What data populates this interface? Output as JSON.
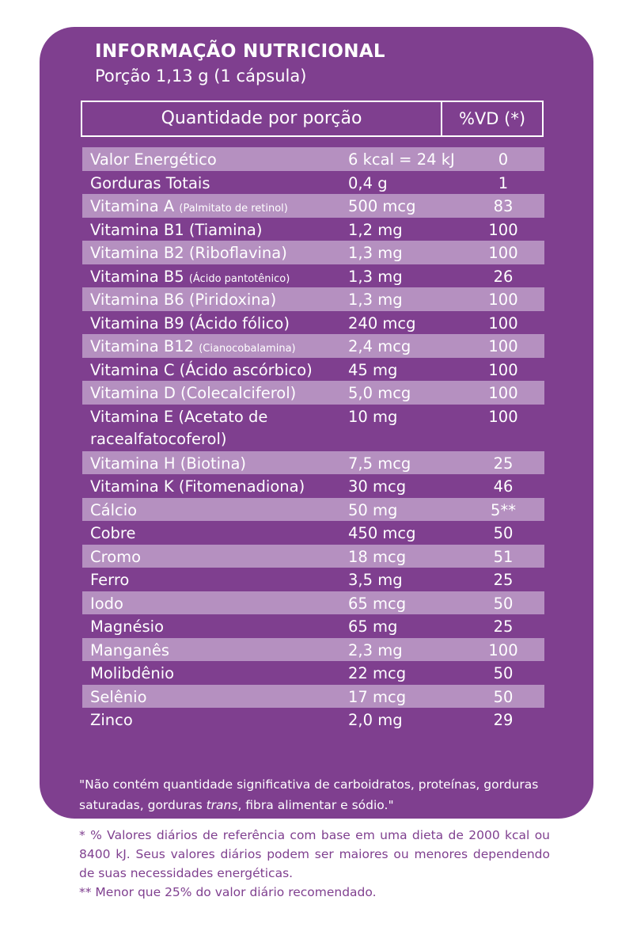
{
  "colors": {
    "panel": "#7f3f8f",
    "row_shade": "#b590c0",
    "text_light": "#ffffff",
    "footnote_text": "#7f3f8f"
  },
  "header": {
    "title": "INFORMAÇÃO NUTRICIONAL",
    "serving": "Porção 1,13 g (1 cápsula)",
    "col_quantity": "Quantidade por porção",
    "col_vd": "%VD (*)"
  },
  "rows": [
    {
      "name": "Valor Energético",
      "note": "",
      "amount": "6 kcal = 24 kJ",
      "vd": "0"
    },
    {
      "name": "Gorduras Totais",
      "note": "",
      "amount": "0,4 g",
      "vd": "1"
    },
    {
      "name": "Vitamina A ",
      "note": "(Palmitato de retinol)",
      "amount": "500 mcg",
      "vd": "83"
    },
    {
      "name": "Vitamina B1 (Tiamina)",
      "note": "",
      "amount": "1,2 mg",
      "vd": "100"
    },
    {
      "name": "Vitamina B2 (Riboflavina)",
      "note": "",
      "amount": "1,3 mg",
      "vd": "100"
    },
    {
      "name": "Vitamina B5 ",
      "note": "(Ácido pantotênico)",
      "amount": "1,3 mg",
      "vd": "26"
    },
    {
      "name": "Vitamina B6 (Piridoxina)",
      "note": "",
      "amount": "1,3 mg",
      "vd": "100"
    },
    {
      "name": "Vitamina B9 (Ácido fólico)",
      "note": "",
      "amount": "240 mcg",
      "vd": "100"
    },
    {
      "name": "Vitamina B12 ",
      "note": "(Cianocobalamina)",
      "amount": "2,4 mcg",
      "vd": "100"
    },
    {
      "name": "Vitamina C (Ácido ascórbico)",
      "note": "",
      "amount": "45 mg",
      "vd": "100"
    },
    {
      "name": "Vitamina D (Colecalciferol)",
      "note": "",
      "amount": "5,0 mcg",
      "vd": "100"
    },
    {
      "name": "Vitamina E (Acetato de",
      "name2": "racealfatocoferol)",
      "note": "",
      "amount": "10 mg",
      "vd": "100"
    },
    {
      "name": "Vitamina H (Biotina)",
      "note": "",
      "amount": "7,5 mcg",
      "vd": "25"
    },
    {
      "name": "Vitamina K (Fitomenadiona)",
      "note": "",
      "amount": "30 mcg",
      "vd": "46"
    },
    {
      "name": "Cálcio",
      "note": "",
      "amount": "50 mg",
      "vd": "5**"
    },
    {
      "name": "Cobre",
      "note": "",
      "amount": "450 mcg",
      "vd": "50"
    },
    {
      "name": "Cromo",
      "note": "",
      "amount": "18 mcg",
      "vd": "51"
    },
    {
      "name": "Ferro",
      "note": "",
      "amount": "3,5 mg",
      "vd": "25"
    },
    {
      "name": "Iodo",
      "note": "",
      "amount": "65 mcg",
      "vd": "50"
    },
    {
      "name": "Magnésio",
      "note": "",
      "amount": "65 mg",
      "vd": "25"
    },
    {
      "name": "Manganês",
      "note": "",
      "amount": "2,3 mg",
      "vd": "100"
    },
    {
      "name": "Molibdênio",
      "note": "",
      "amount": "22 mcg",
      "vd": "50"
    },
    {
      "name": "Selênio",
      "note": "",
      "amount": "17 mcg",
      "vd": "50"
    },
    {
      "name": "Zinco",
      "note": "",
      "amount": "2,0 mg",
      "vd": "29"
    }
  ],
  "note": {
    "part1": "\"Não contém quantidade significativa de carboidratos, proteínas, gorduras saturadas, gorduras ",
    "italic": "trans",
    "part2": ", fibra alimentar e sódio.\""
  },
  "footnotes": {
    "line1": "* % Valores diários de referência com base em uma dieta de 2000 kcal ou 8400 kJ. Seus valores diários podem ser maiores ou menores dependendo de suas necessidades energéticas.",
    "line2": "** Menor que 25% do valor diário recomendado."
  }
}
